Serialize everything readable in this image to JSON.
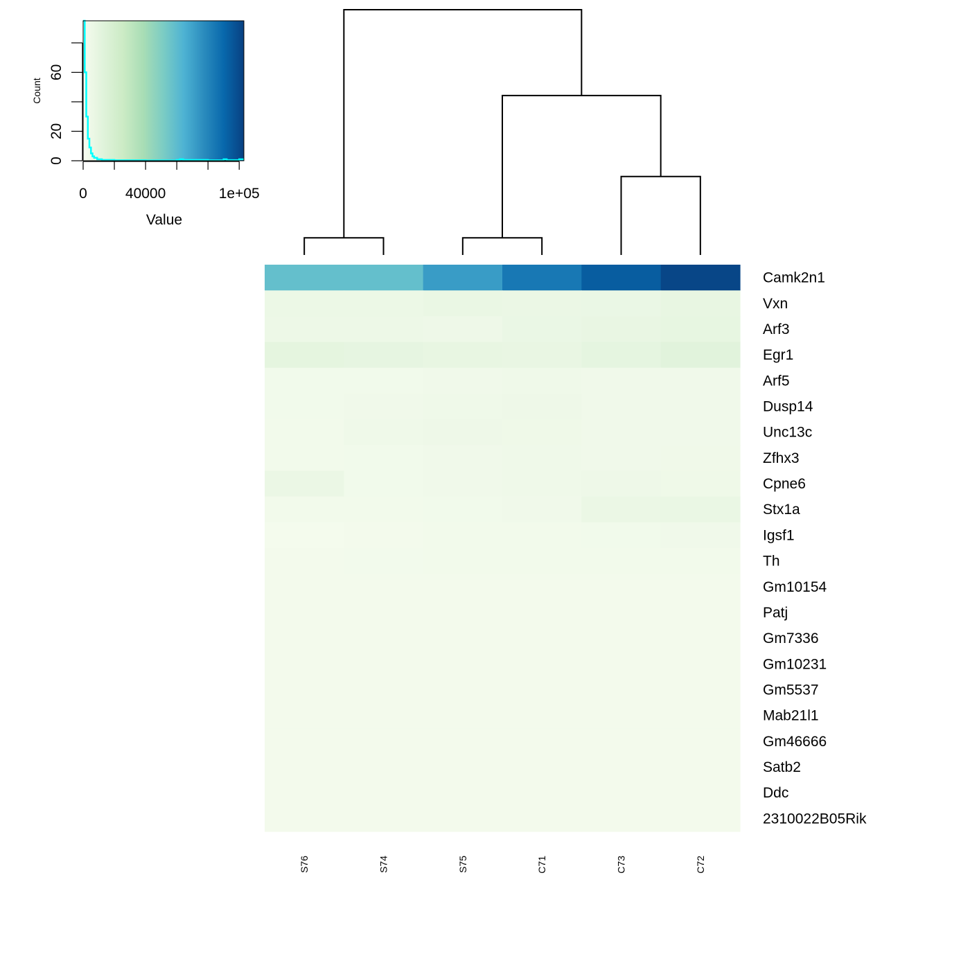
{
  "chart_data": {
    "type": "heatmap",
    "columns": [
      "S76",
      "S74",
      "S75",
      "C71",
      "C73",
      "C72"
    ],
    "rows": [
      "Camk2n1",
      "Vxn",
      "Arf3",
      "Egr1",
      "Arf5",
      "Dusp14",
      "Unc13c",
      "Zfhx3",
      "Cpne6",
      "Stx1a",
      "Igsf1",
      "Th",
      "Gm10154",
      "Patj",
      "Gm7336",
      "Gm10231",
      "Gm5537",
      "Mab21l1",
      "Gm46666",
      "Satb2",
      "Ddc",
      "2310022B05Rik"
    ],
    "values": [
      [
        62000,
        62000,
        77000,
        90000,
        100000,
        108000
      ],
      [
        6500,
        6500,
        8000,
        7000,
        7500,
        9000
      ],
      [
        6000,
        6000,
        5500,
        7500,
        8500,
        9500
      ],
      [
        11000,
        10000,
        9000,
        8500,
        10500,
        13000
      ],
      [
        3500,
        3500,
        4000,
        4500,
        4000,
        4200
      ],
      [
        3500,
        4000,
        4500,
        5500,
        4000,
        4200
      ],
      [
        3000,
        4500,
        5500,
        5000,
        4000,
        4000
      ],
      [
        3200,
        3500,
        4000,
        4500,
        4200,
        4300
      ],
      [
        7000,
        3500,
        4000,
        4500,
        5500,
        5000
      ],
      [
        3000,
        3200,
        3500,
        4000,
        7000,
        8000
      ],
      [
        2000,
        2500,
        3000,
        3000,
        3500,
        4000
      ],
      [
        2500,
        2800,
        3000,
        3000,
        3000,
        3000
      ],
      [
        2500,
        2500,
        2500,
        2500,
        2500,
        2500
      ],
      [
        2500,
        2500,
        2500,
        2500,
        2500,
        2500
      ],
      [
        2500,
        2500,
        2500,
        2500,
        2500,
        2500
      ],
      [
        2500,
        2500,
        2500,
        2500,
        2500,
        2500
      ],
      [
        2500,
        2500,
        2500,
        2500,
        2500,
        2500
      ],
      [
        2500,
        2500,
        2500,
        2500,
        2500,
        2500
      ],
      [
        2500,
        2500,
        2500,
        2500,
        2500,
        2500
      ],
      [
        2500,
        2500,
        2500,
        2500,
        2500,
        2500
      ],
      [
        2500,
        2500,
        2500,
        2500,
        2500,
        2500
      ],
      [
        2500,
        2500,
        2500,
        2500,
        2500,
        2500
      ]
    ],
    "color_scale": {
      "min": 0,
      "max": 110000,
      "colors": [
        "#f7fcf0",
        "#e0f3db",
        "#ccebc5",
        "#a8ddb5",
        "#7bccc4",
        "#4eb3d3",
        "#2b8cbe",
        "#0868ac",
        "#084081"
      ]
    },
    "column_dendrogram": {
      "merges": [
        [
          -1,
          -2
        ],
        [
          -3,
          -4
        ],
        [
          -5,
          -6
        ],
        [
          2,
          3
        ],
        [
          1,
          4
        ]
      ],
      "heights": [
        0.07,
        0.07,
        0.32,
        0.65,
        1.0
      ]
    },
    "color_key": {
      "xlabel": "Value",
      "ylabel": "Count",
      "x_ticks": [
        0,
        20000,
        40000,
        60000,
        80000,
        100000
      ],
      "x_tick_labels": [
        "0",
        "",
        "40000",
        "",
        "",
        "1e+05"
      ],
      "y_ticks": [
        0,
        20,
        40,
        60,
        80
      ],
      "y_tick_labels": [
        "0",
        "20",
        "",
        "60",
        ""
      ],
      "xlim": [
        0,
        103000
      ],
      "ylim": [
        0,
        95
      ],
      "density_color": "#00ffff",
      "density": [
        [
          0,
          95
        ],
        [
          1000,
          60
        ],
        [
          2000,
          30
        ],
        [
          3000,
          15
        ],
        [
          4000,
          9
        ],
        [
          5000,
          5
        ],
        [
          6000,
          3
        ],
        [
          7000,
          2
        ],
        [
          9000,
          1
        ],
        [
          12000,
          0.5
        ],
        [
          20000,
          0.3
        ],
        [
          40000,
          0.2
        ],
        [
          60000,
          0.5
        ],
        [
          62000,
          1
        ],
        [
          64000,
          0.5
        ],
        [
          80000,
          0.3
        ],
        [
          90000,
          1
        ],
        [
          92000,
          0.4
        ],
        [
          100000,
          1
        ],
        [
          103000,
          1
        ]
      ]
    }
  }
}
